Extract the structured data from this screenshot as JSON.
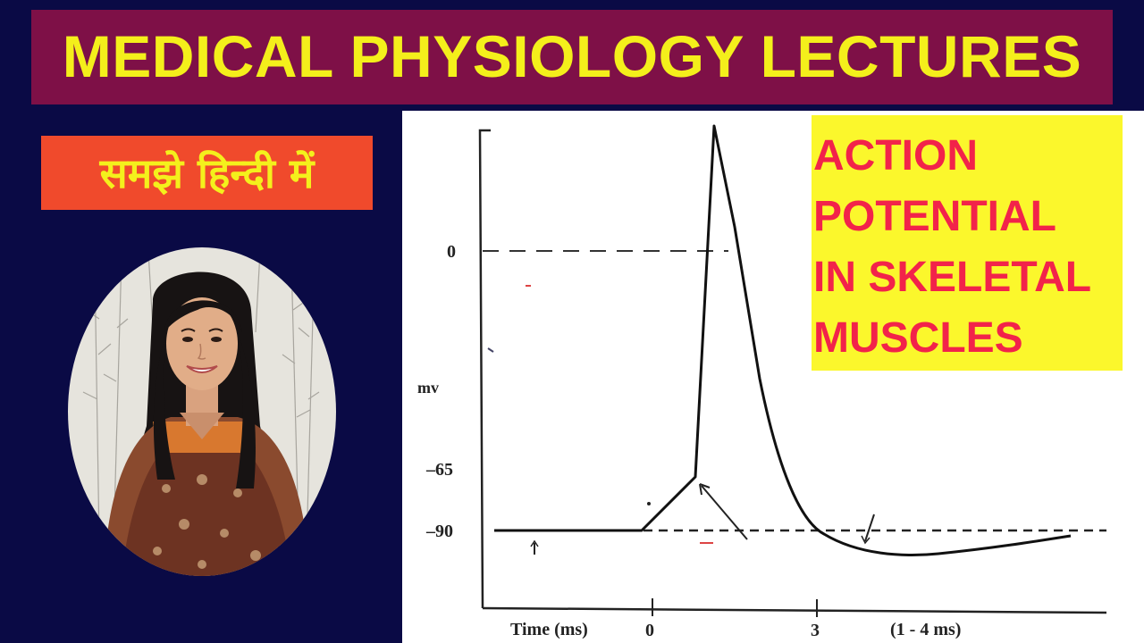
{
  "banner": {
    "title": "MEDICAL PHYSIOLOGY LECTURES"
  },
  "subtitle": {
    "hindi": "समझे हिन्दी में"
  },
  "topic": {
    "lines": [
      "ACTION",
      "POTENTIAL",
      "IN SKELETAL",
      "MUSCLES"
    ]
  },
  "graph": {
    "y_unit": "mv",
    "y_ticks": [
      "0",
      "–65",
      "–90"
    ],
    "x_axis_title": "Time (ms)",
    "x_ticks": [
      "0",
      "3"
    ],
    "duration_note": "(1 - 4 ms)"
  },
  "colors": {
    "background": "#0a0a45",
    "banner": "#7e1047",
    "banner_text": "#f4ef1b",
    "hindi_box": "#f04a2c",
    "topic_box": "#fbf72c",
    "topic_text": "#f2234a"
  }
}
